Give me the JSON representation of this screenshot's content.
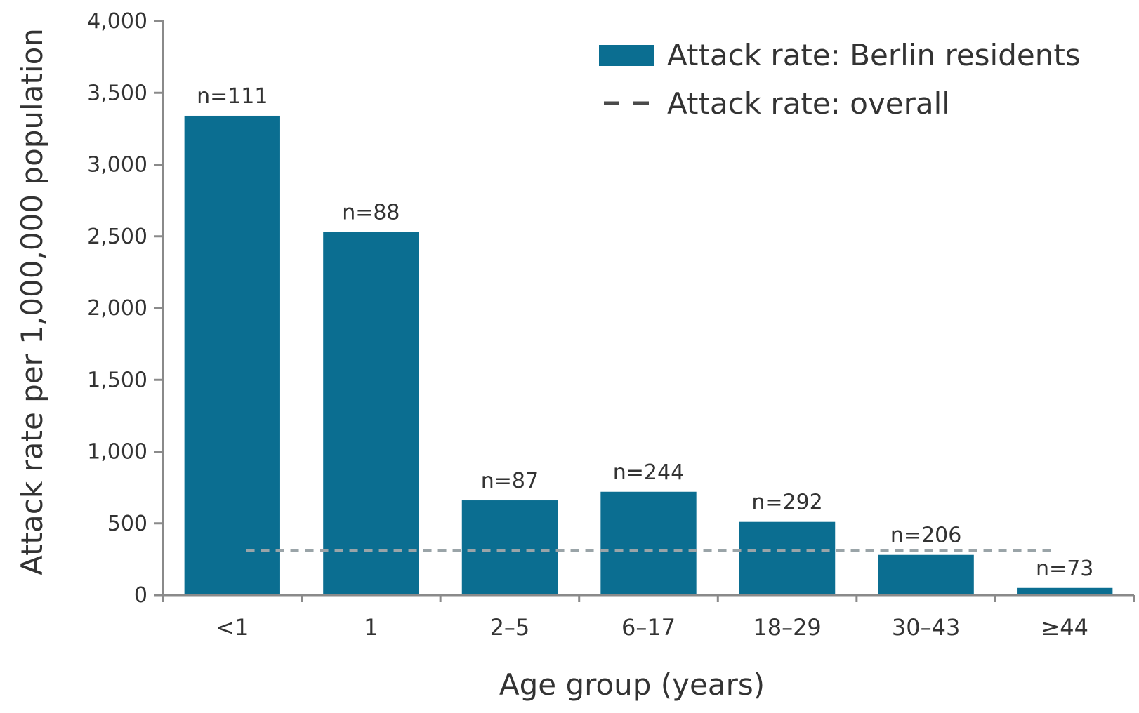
{
  "chart_data": {
    "type": "bar",
    "categories": [
      "<1",
      "1",
      "2–5",
      "6–17",
      "18–29",
      "30–43",
      "≥44"
    ],
    "series": [
      {
        "name": "Attack rate: Berlin residents",
        "values": [
          3340,
          2530,
          660,
          720,
          510,
          280,
          50
        ],
        "data_labels": [
          "n=111",
          "n=88",
          "n=87",
          "n=244",
          "n=292",
          "n=206",
          "n=73"
        ],
        "color": "#0b6e91"
      }
    ],
    "reference_line": {
      "name": "Attack rate: overall",
      "value": 310,
      "style": "dashed",
      "color": "#9aa4a8"
    },
    "xlabel": "Age group (years)",
    "ylabel": "Attack rate per 1,000,000 population",
    "ylim": [
      0,
      4000
    ],
    "yticks": [
      0,
      500,
      1000,
      1500,
      2000,
      2500,
      3000,
      3500,
      4000
    ],
    "ytick_labels": [
      "0",
      "500",
      "1,000",
      "1,500",
      "2,000",
      "2,500",
      "3,000",
      "3,500",
      "4,000"
    ],
    "grid": false,
    "legend_position": "top-right"
  }
}
